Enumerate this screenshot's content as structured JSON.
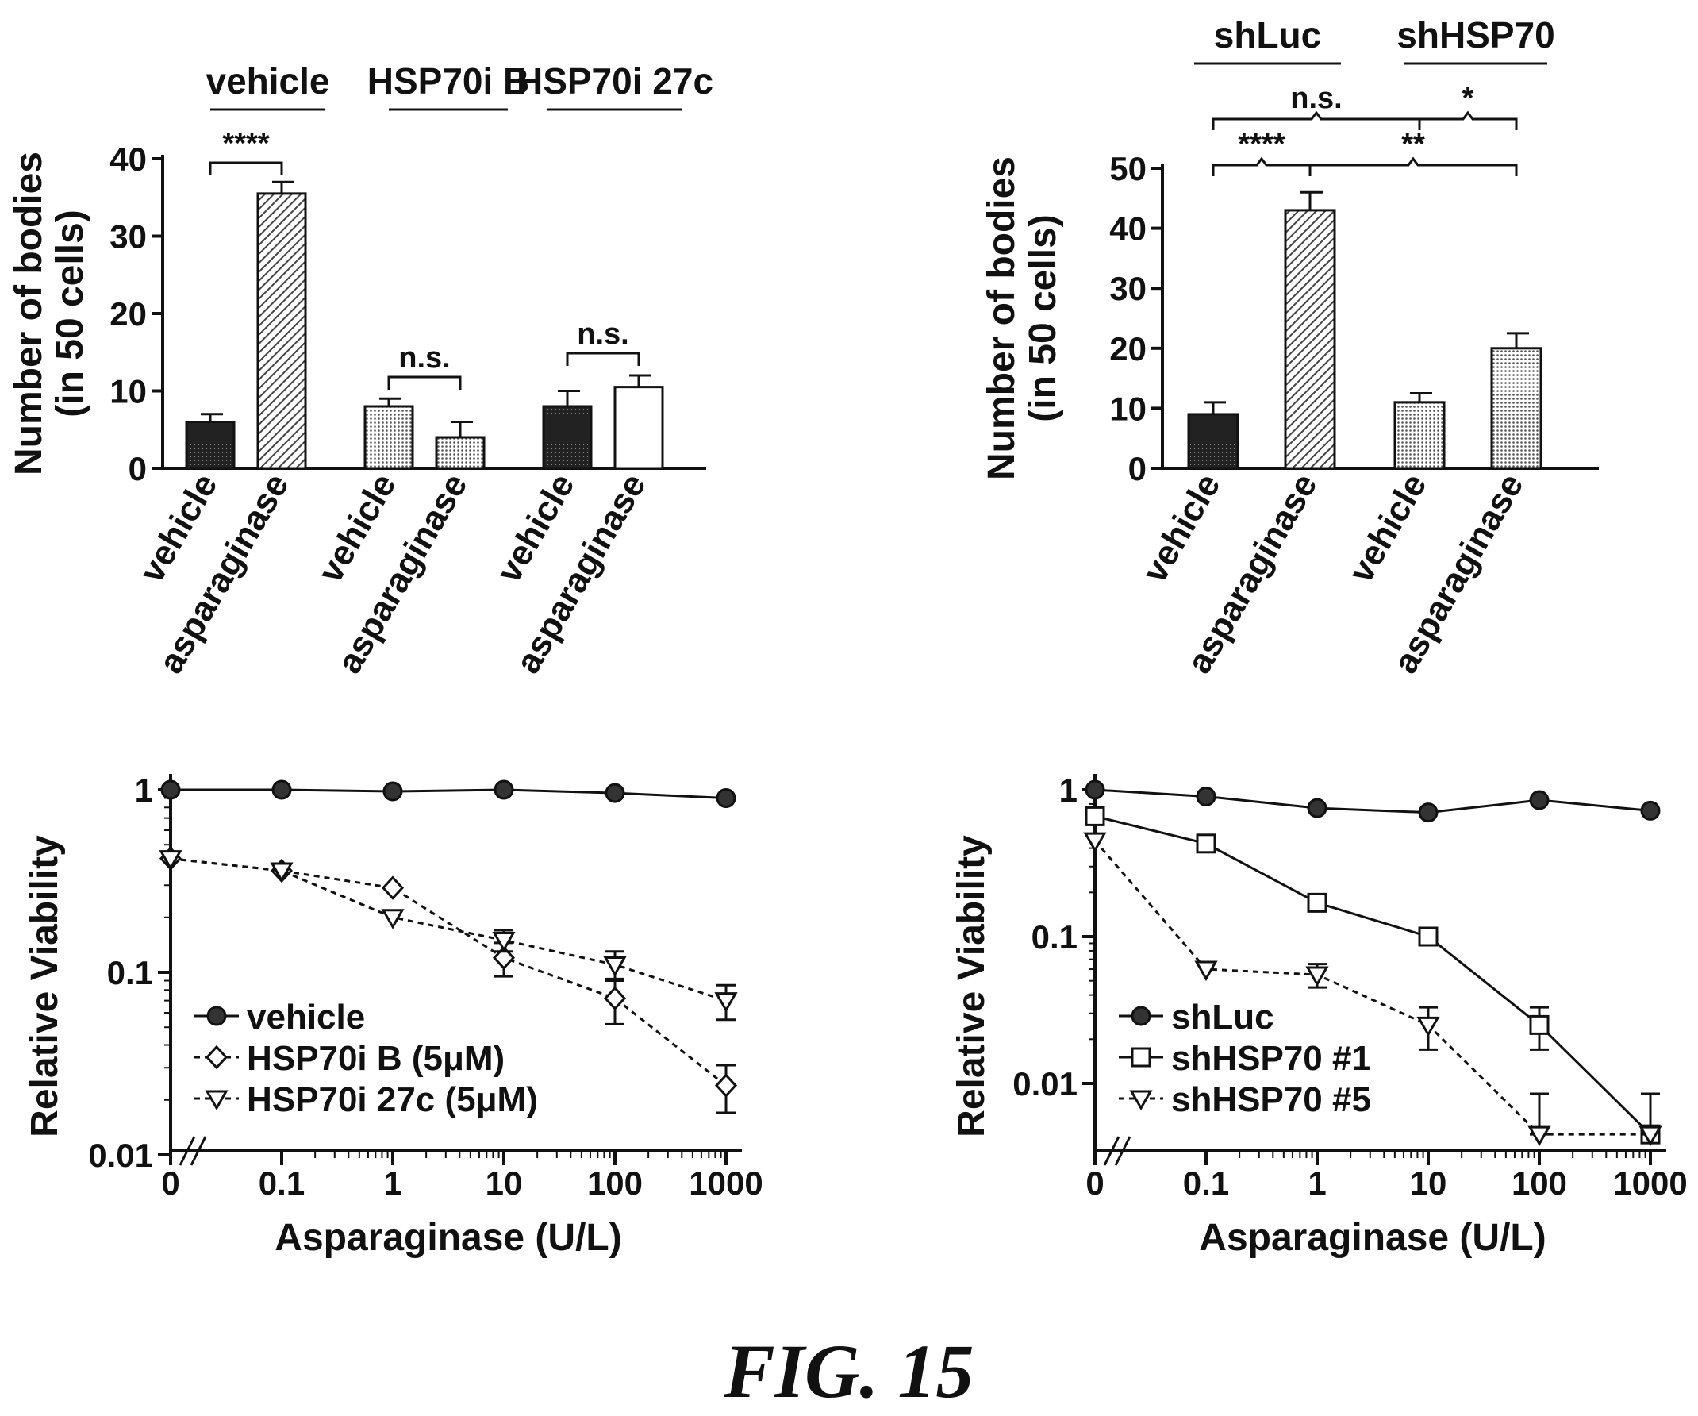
{
  "figure_label": "FIG. 15",
  "colors": {
    "ink": "#111111",
    "background": "#ffffff"
  },
  "chart_data": [
    {
      "type": "bar",
      "ylabel": [
        "Number of bodies",
        "(in 50 cells)"
      ],
      "ylim": [
        0,
        40
      ],
      "yticks": [
        "0",
        "10",
        "20",
        "30",
        "40"
      ],
      "group_labels": [
        "vehicle",
        "HSP70i B",
        "HSP70i 27c"
      ],
      "categories": [
        "vehicle",
        "asparaginase",
        "vehicle",
        "asparaginase",
        "vehicle",
        "asparaginase"
      ],
      "values": [
        6,
        35.5,
        8,
        4,
        8,
        10.5
      ],
      "errors": [
        1,
        1.5,
        1,
        2,
        2,
        1.5
      ],
      "fills": [
        "dense",
        "hatch",
        "dots",
        "dots",
        "dense",
        "white"
      ],
      "significance": [
        {
          "label": "****",
          "from": 0,
          "to": 1
        },
        {
          "label": "n.s.",
          "from": 2,
          "to": 3
        },
        {
          "label": "n.s.",
          "from": 4,
          "to": 5
        }
      ]
    },
    {
      "type": "bar",
      "ylabel": [
        "Number of bodies",
        "(in 50 cells)"
      ],
      "ylim": [
        0,
        50
      ],
      "yticks": [
        "0",
        "10",
        "20",
        "30",
        "40",
        "50"
      ],
      "group_labels": [
        "shLuc",
        "shHSP70"
      ],
      "categories": [
        "vehicle",
        "asparaginase",
        "vehicle",
        "asparaginase"
      ],
      "values": [
        9,
        43,
        11,
        20
      ],
      "errors": [
        2,
        3,
        1.5,
        2.5
      ],
      "fills": [
        "dense",
        "hatch",
        "dots",
        "dots"
      ],
      "significance": [
        {
          "label": "n.s.",
          "from": 0,
          "to": 2
        },
        {
          "label": "*",
          "from": 2,
          "to": 3
        },
        {
          "label": "****",
          "from": 0,
          "to": 1
        },
        {
          "label": "**",
          "from": 1,
          "to": 3
        }
      ]
    },
    {
      "type": "line",
      "scale": "log",
      "xlabel": "Asparaginase (U/L)",
      "ylabel": "Relative Viability",
      "x": [
        "0",
        "0.1",
        "1",
        "10",
        "100",
        "1000"
      ],
      "yticks": [
        "0.01",
        "0.1",
        "1"
      ],
      "ylim": [
        0.01,
        1
      ],
      "series": [
        {
          "name": "vehicle",
          "marker": "circle",
          "dashed": false,
          "values": [
            1,
            1,
            0.98,
            1,
            0.96,
            0.9
          ],
          "errors": [
            0,
            0,
            0,
            0,
            0,
            0
          ]
        },
        {
          "name": "HSP70i B (5μM)",
          "marker": "diamond",
          "dashed": true,
          "values": [
            0.42,
            0.36,
            0.29,
            0.12,
            0.072,
            0.024
          ],
          "errors": [
            0,
            0,
            0,
            0.025,
            0.02,
            0.007
          ]
        },
        {
          "name": "HSP70i 27c (5μM)",
          "marker": "triangle",
          "dashed": true,
          "values": [
            0.42,
            0.36,
            0.2,
            0.15,
            0.11,
            0.07
          ],
          "errors": [
            0,
            0,
            0,
            0.02,
            0.02,
            0.015
          ]
        }
      ]
    },
    {
      "type": "line",
      "scale": "log",
      "xlabel": "Asparaginase (U/L)",
      "ylabel": "Relative Viability",
      "x": [
        "0",
        "0.1",
        "1",
        "10",
        "100",
        "1000"
      ],
      "yticks": [
        "0.01",
        "0.1",
        "1"
      ],
      "ylim": [
        0.004,
        1
      ],
      "series": [
        {
          "name": "shLuc",
          "marker": "circle",
          "dashed": false,
          "values": [
            1,
            0.9,
            0.75,
            0.7,
            0.85,
            0.72
          ],
          "errors": [
            0,
            0,
            0,
            0,
            0,
            0
          ]
        },
        {
          "name": "shHSP70 #1",
          "marker": "square",
          "dashed": false,
          "values": [
            0.66,
            0.43,
            0.17,
            0.1,
            0.025,
            0.0045
          ],
          "errors": [
            0,
            0,
            0.02,
            0,
            0.008,
            0.004
          ]
        },
        {
          "name": "shHSP70 #5",
          "marker": "triangle",
          "dashed": true,
          "values": [
            0.45,
            0.06,
            0.055,
            0.025,
            0.0045,
            0.0045
          ],
          "errors": [
            0,
            0,
            0.01,
            0.008,
            0.004,
            0
          ]
        }
      ]
    }
  ]
}
